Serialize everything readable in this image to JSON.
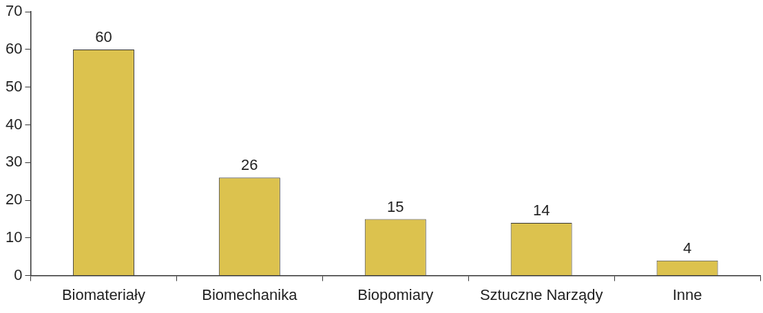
{
  "chart_data": {
    "type": "bar",
    "categories": [
      "Biomateriały",
      "Biomechanika",
      "Biopomiary",
      "Sztuczne Narządy",
      "Inne"
    ],
    "values": [
      60,
      26,
      15,
      14,
      4
    ],
    "color": "#dcc24e",
    "ylim": [
      0,
      70
    ],
    "yticks": [
      0,
      10,
      20,
      30,
      40,
      50,
      60,
      70
    ],
    "grid": false,
    "legend": false,
    "data_labels": true
  }
}
